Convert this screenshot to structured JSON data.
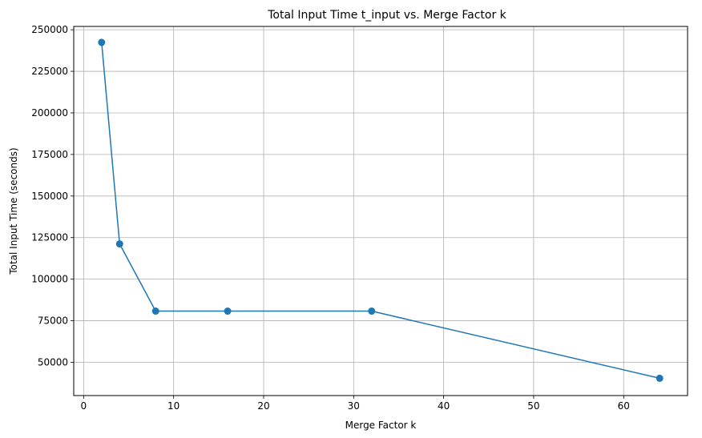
{
  "chart_data": {
    "type": "line",
    "title": "Total Input Time t_input vs. Merge Factor k",
    "xlabel": "Merge Factor k",
    "ylabel": "Total Input Time (seconds)",
    "xlim": [
      -1.1,
      67.1
    ],
    "ylim": [
      30000,
      252000
    ],
    "xticks": [
      0,
      10,
      20,
      30,
      40,
      50,
      60
    ],
    "xtick_labels": [
      "0",
      "10",
      "20",
      "30",
      "40",
      "50",
      "60"
    ],
    "yticks": [
      50000,
      75000,
      100000,
      125000,
      150000,
      175000,
      200000,
      225000,
      250000
    ],
    "ytick_labels": [
      "50000",
      "75000",
      "100000",
      "125000",
      "150000",
      "175000",
      "200000",
      "225000",
      "250000"
    ],
    "grid": true,
    "series": [
      {
        "color": "#1f77b4",
        "marker": "circle",
        "x": [
          2,
          4,
          8,
          16,
          32,
          64
        ],
        "y": [
          242400,
          121200,
          80800,
          80800,
          80800,
          40400
        ]
      }
    ]
  }
}
